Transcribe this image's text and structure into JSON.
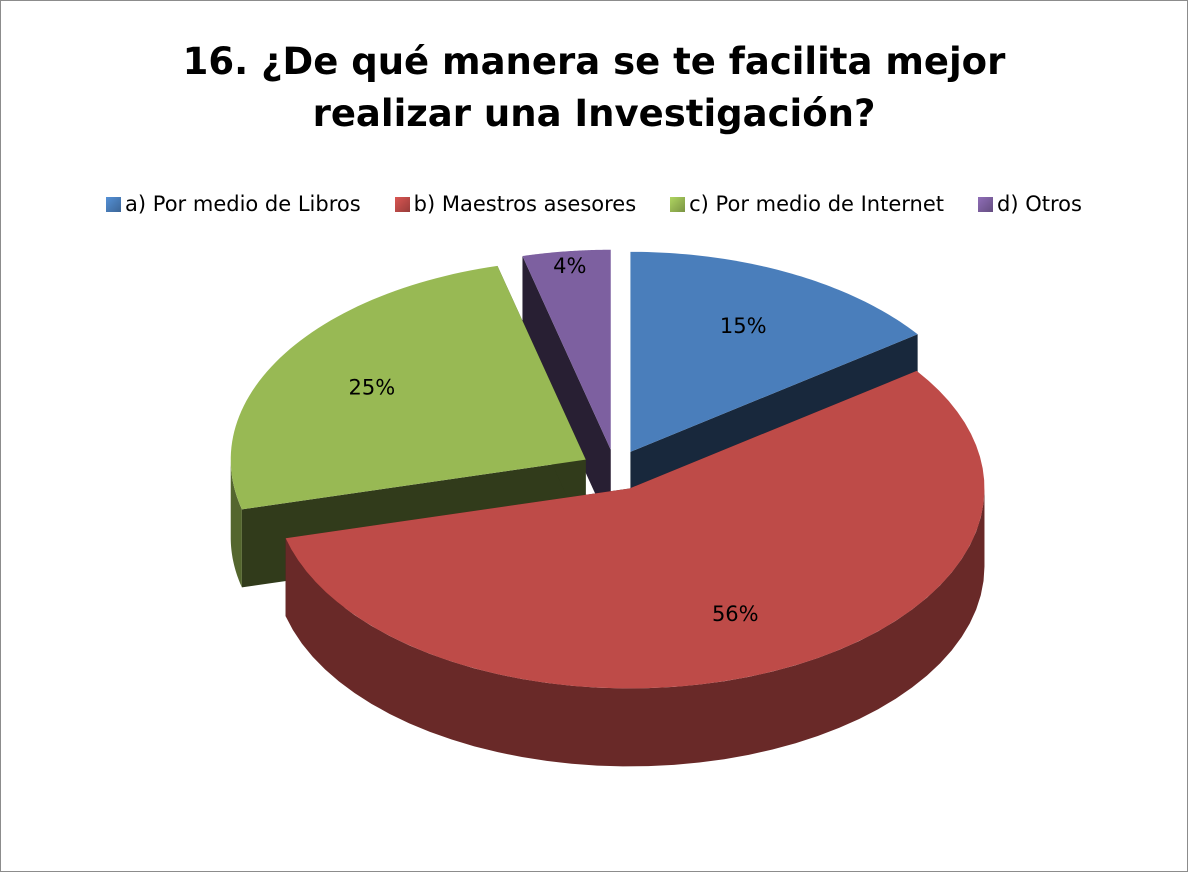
{
  "chart_data": {
    "type": "pie3d",
    "title": "16. ¿De qué manera se te facilita mejor realizar una Investigación?",
    "categories": [
      "a) Por medio de Libros",
      "b) Maestros asesores",
      "c) Por medio de Internet",
      "d) Otros"
    ],
    "values": [
      15,
      56,
      25,
      4
    ],
    "value_labels": [
      "15%",
      "56%",
      "25%",
      "4%"
    ],
    "colors": [
      "#4a7ebb",
      "#be4b48",
      "#98b954",
      "#7d60a0"
    ],
    "legend": "top"
  }
}
